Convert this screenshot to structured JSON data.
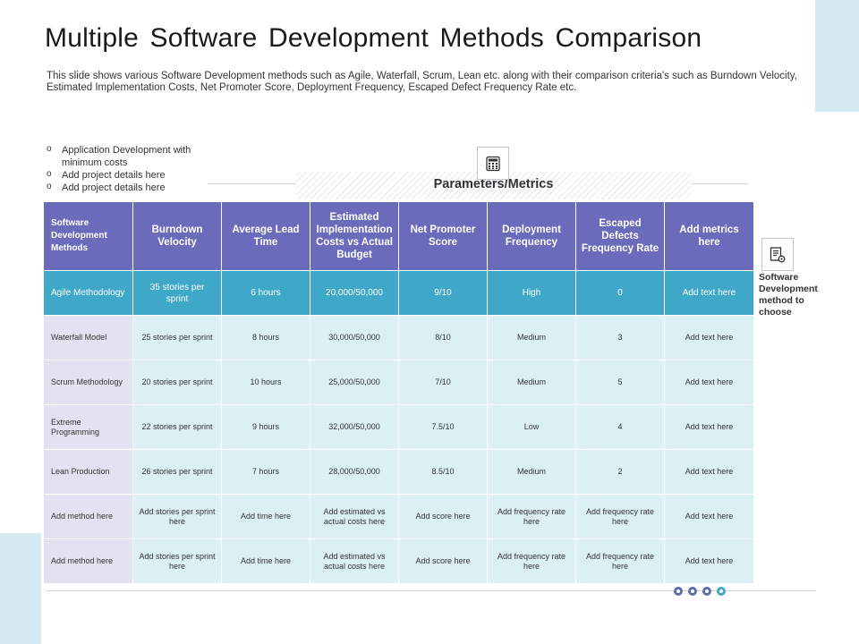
{
  "slide": {
    "title": "Multiple Software Development Methods Comparison",
    "subtitle": "This slide shows various Software Development methods such as Agile, Waterfall, Scrum, Lean etc. along with their comparison criteria's such as Burndown Velocity, Estimated Implementation Costs, Net Promoter Score, Deployment Frequency, Escaped Defect Frequency Rate etc."
  },
  "bullets": [
    "Application Development with minimum costs",
    "Add project details here",
    "Add project details here"
  ],
  "parameters_label": "Parameters/Metrics",
  "side_note": "Software Development method to choose",
  "table": {
    "headers": [
      "Software Development Methods",
      "Burndown Velocity",
      "Average Lead Time",
      "Estimated Implementation Costs vs Actual Budget",
      "Net Promoter Score",
      "Deployment Frequency",
      "Escaped Defects Frequency Rate",
      "Add metrics here"
    ],
    "rows": [
      [
        "Agile Methodology",
        "35 stories per sprint",
        "6 hours",
        "20,000/50,000",
        "9/10",
        "High",
        "0",
        "Add text here"
      ],
      [
        "Waterfall Model",
        "25 stories per sprint",
        "8 hours",
        "30,000/50,000",
        "8/10",
        "Medium",
        "3",
        "Add text here"
      ],
      [
        "Scrum Methodology",
        "20 stories per sprint",
        "10 hours",
        "25,000/50,000",
        "7/10",
        "Medium",
        "5",
        "Add text here"
      ],
      [
        "Extreme Programming",
        "22 stories per sprint",
        "9 hours",
        "32,000/50,000",
        "7.5/10",
        "Low",
        "4",
        "Add text here"
      ],
      [
        "Lean Production",
        "26 stories per sprint",
        "7 hours",
        "28,000/50,000",
        "8.5/10",
        "Medium",
        "2",
        "Add text here"
      ],
      [
        "Add method here",
        "Add stories per sprint here",
        "Add time here",
        "Add estimated vs actual costs here",
        "Add score here",
        "Add frequency rate here",
        "Add frequency rate here",
        "Add text here"
      ],
      [
        "Add method here",
        "Add stories per sprint here",
        "Add time here",
        "Add estimated vs actual costs here",
        "Add score here",
        "Add frequency rate here",
        "Add frequency rate here",
        "Add text here"
      ]
    ],
    "highlight_row": 0
  },
  "icons": {
    "top": "calculator-icon",
    "side": "document-gear-icon"
  },
  "colors": {
    "header": "#6b6bbc",
    "highlight": "#3fa8c9",
    "cell": "#dcf0f4",
    "first_column": "#e3e2f3",
    "accent_panel": "#d6eaf1"
  }
}
